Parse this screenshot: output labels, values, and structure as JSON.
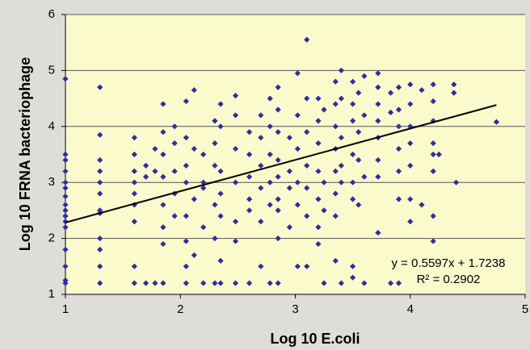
{
  "chart_data": {
    "type": "scatter",
    "x_label": "Log 10 E.coli",
    "y_label": "Log 10 FRNA bacteriophage",
    "color": "#2e2e9c",
    "xlim": [
      1,
      5
    ],
    "xticks": [
      1,
      2,
      3,
      4,
      5
    ],
    "ylim": [
      1,
      6
    ],
    "yticks": [
      1,
      2,
      3,
      4,
      5,
      6
    ],
    "grid": true,
    "x": [
      1,
      1,
      1,
      1,
      1,
      1,
      1,
      1,
      1,
      1,
      1,
      1,
      1,
      1,
      1,
      1,
      1.3,
      1.3,
      1.3,
      1.3,
      1.3,
      1.3,
      1.3,
      1.3,
      1.3,
      1.3,
      1.3,
      1.3,
      1.6,
      1.6,
      1.6,
      1.6,
      1.6,
      1.6,
      1.6,
      1.6,
      1.6,
      1.7,
      1.7,
      1.7,
      1.78,
      1.78,
      1.78,
      1.85,
      1.85,
      1.85,
      1.85,
      1.85,
      1.85,
      1.85,
      1.85,
      1.95,
      1.95,
      1.95,
      1.95,
      1.95,
      2.05,
      2.05,
      2.05,
      2.05,
      2.05,
      2.05,
      2.05,
      2.05,
      2.12,
      2.12,
      2.12,
      2.12,
      2.2,
      2.2,
      2.2,
      2.2,
      2.2,
      2.3,
      2.3,
      2.3,
      2.3,
      2.3,
      2.3,
      2.35,
      2.35,
      2.35,
      2.35,
      2.35,
      2.35,
      2.35,
      2.48,
      2.48,
      2.48,
      2.48,
      2.48,
      2.48,
      2.48,
      2.6,
      2.6,
      2.6,
      2.6,
      2.6,
      2.6,
      2.7,
      2.7,
      2.7,
      2.7,
      2.7,
      2.7,
      2.78,
      2.78,
      2.78,
      2.78,
      2.78,
      2.78,
      2.85,
      2.85,
      2.85,
      2.85,
      2.85,
      2.85,
      2.85,
      2.85,
      2.85,
      2.95,
      2.95,
      2.95,
      2.95,
      3.02,
      3.02,
      3.02,
      3.02,
      3.02,
      3.02,
      3.1,
      3.1,
      3.1,
      3.1,
      3.1,
      3.1,
      3.1,
      3.2,
      3.2,
      3.2,
      3.2,
      3.2,
      3.2,
      3.2,
      3.25,
      3.25,
      3.25,
      3.25,
      3.35,
      3.35,
      3.35,
      3.35,
      3.35,
      3.35,
      3.35,
      3.35,
      3.4,
      3.4,
      3.4,
      3.4,
      3.4,
      3.4,
      3.5,
      3.5,
      3.5,
      3.5,
      3.5,
      3.5,
      3.5,
      3.5,
      3.55,
      3.55,
      3.55,
      3.55,
      3.6,
      3.6,
      3.6,
      3.6,
      3.72,
      3.72,
      3.72,
      3.72,
      3.72,
      3.72,
      3.72,
      3.72,
      3.83,
      3.83,
      3.83,
      3.9,
      3.9,
      3.9,
      3.9,
      3.9,
      3.9,
      3.9,
      4.0,
      4.0,
      4.0,
      4.0,
      4.0,
      4.0,
      4.0,
      4.1,
      4.1,
      4.2,
      4.2,
      4.2,
      4.2,
      4.2,
      4.2,
      4.2,
      4.2,
      4.25,
      4.38,
      4.38,
      4.4,
      4.75
    ],
    "values": [
      4.85,
      3.5,
      3.4,
      3.2,
      3.0,
      2.9,
      2.75,
      2.6,
      2.5,
      2.4,
      2.3,
      2.2,
      1.8,
      1.5,
      1.2,
      1.25,
      4.7,
      3.85,
      3.4,
      3.2,
      3.0,
      2.8,
      2.5,
      2.45,
      2.0,
      1.8,
      1.5,
      1.2,
      3.8,
      3.5,
      3.2,
      3.0,
      2.8,
      2.6,
      2.3,
      1.5,
      1.2,
      1.2,
      3.3,
      3.1,
      3.6,
      3.2,
      1.2,
      4.4,
      3.9,
      3.5,
      3.1,
      2.6,
      2.2,
      1.9,
      1.2,
      4.0,
      3.7,
      3.2,
      2.8,
      2.4,
      4.45,
      3.8,
      3.3,
      3.0,
      2.4,
      1.95,
      1.5,
      1.2,
      4.65,
      3.6,
      2.7,
      1.7,
      3.5,
      3.0,
      2.9,
      2.2,
      1.2,
      4.1,
      3.7,
      3.3,
      2.6,
      2.0,
      1.2,
      4.4,
      4.0,
      3.2,
      2.8,
      2.4,
      1.6,
      1.2,
      4.55,
      4.2,
      3.6,
      3.0,
      2.3,
      1.95,
      1.2,
      3.9,
      3.5,
      3.1,
      2.7,
      2.5,
      1.2,
      4.2,
      3.8,
      3.3,
      2.9,
      2.3,
      1.5,
      4.5,
      4.0,
      3.5,
      3.0,
      2.6,
      1.2,
      4.7,
      4.3,
      3.9,
      3.4,
      3.1,
      2.7,
      2.5,
      2.0,
      1.2,
      3.8,
      3.2,
      2.9,
      2.2,
      4.95,
      4.2,
      3.6,
      3.0,
      2.6,
      1.5,
      5.55,
      4.5,
      3.9,
      3.3,
      2.9,
      2.4,
      1.5,
      4.5,
      4.1,
      3.7,
      3.2,
      2.7,
      2.2,
      1.9,
      4.3,
      3.0,
      2.5,
      1.2,
      4.8,
      4.4,
      4.0,
      3.6,
      3.2,
      2.8,
      2.4,
      1.6,
      5.0,
      4.5,
      3.8,
      3.3,
      3.0,
      1.2,
      4.8,
      4.4,
      4.1,
      3.5,
      3.0,
      2.7,
      1.5,
      1.3,
      4.6,
      3.9,
      3.4,
      2.6,
      4.9,
      4.2,
      3.1,
      1.2,
      4.95,
      4.7,
      4.4,
      4.1,
      3.8,
      3.4,
      3.1,
      2.1,
      4.6,
      4.25,
      1.2,
      4.7,
      4.3,
      4.0,
      3.6,
      3.2,
      2.7,
      1.2,
      4.75,
      4.4,
      4.0,
      3.7,
      3.3,
      2.7,
      2.3,
      4.65,
      2.6,
      4.75,
      4.45,
      4.1,
      3.7,
      3.5,
      3.2,
      2.4,
      1.95,
      3.5,
      4.75,
      4.6,
      3.0,
      4.08
    ],
    "trendline": {
      "slope": 0.5597,
      "intercept": 1.7238,
      "x": [
        1,
        4.75
      ],
      "color": "#000000"
    },
    "annotations": [
      "y = 0.5597x + 1.7238",
      "R² = 0.2902"
    ]
  }
}
